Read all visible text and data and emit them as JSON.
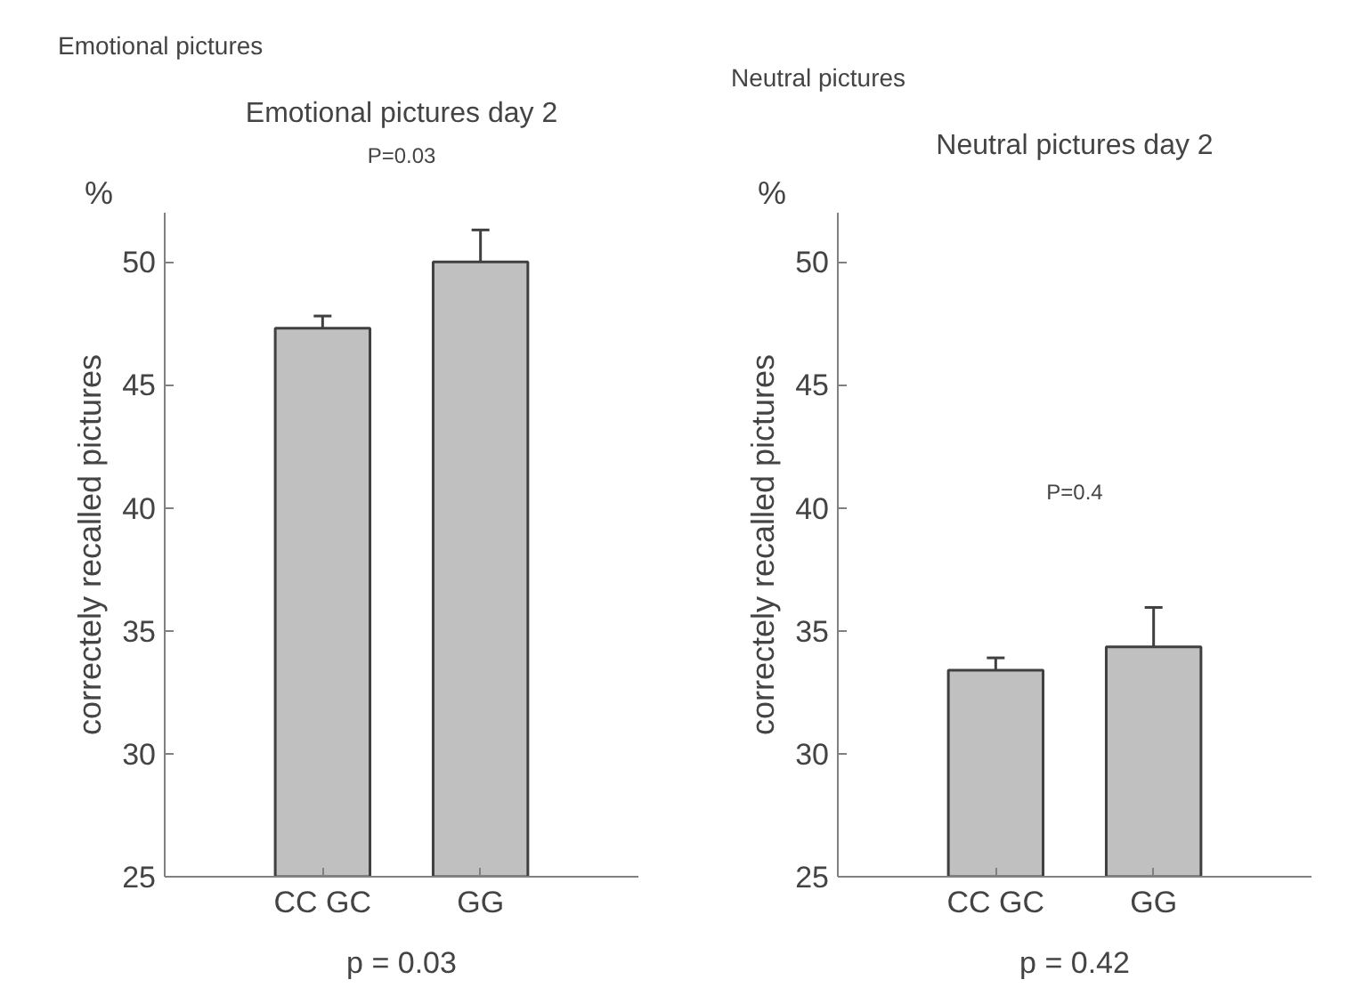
{
  "chart_data": [
    {
      "type": "bar",
      "title": "Emotional pictures",
      "subtitle": "Emotional pictures day 2",
      "ylabel": "correctely recalled pictures",
      "categories": [
        "CC GC",
        "GG"
      ],
      "values": [
        47.3,
        50.0
      ],
      "errors": [
        0.5,
        1.3
      ],
      "color": "#c0c0c0",
      "ylim": [
        25,
        52
      ],
      "yticks": [
        25,
        30,
        35,
        40,
        45,
        50
      ],
      "grid": false,
      "annotations": [
        "%",
        "P=0.03",
        "p = 0.03"
      ]
    },
    {
      "type": "bar",
      "title": "Neutral pictures",
      "subtitle": "Neutral pictures day 2",
      "ylabel": "correctely recalled pictures",
      "categories": [
        "CC GC",
        "GG"
      ],
      "values": [
        33.4,
        34.35
      ],
      "errors": [
        0.5,
        1.6
      ],
      "color": "#c0c0c0",
      "ylim": [
        25,
        52
      ],
      "yticks": [
        25,
        30,
        35,
        40,
        45,
        50
      ],
      "grid": false,
      "annotations": [
        "%",
        "P=0.4",
        "p = 0.42"
      ]
    }
  ]
}
